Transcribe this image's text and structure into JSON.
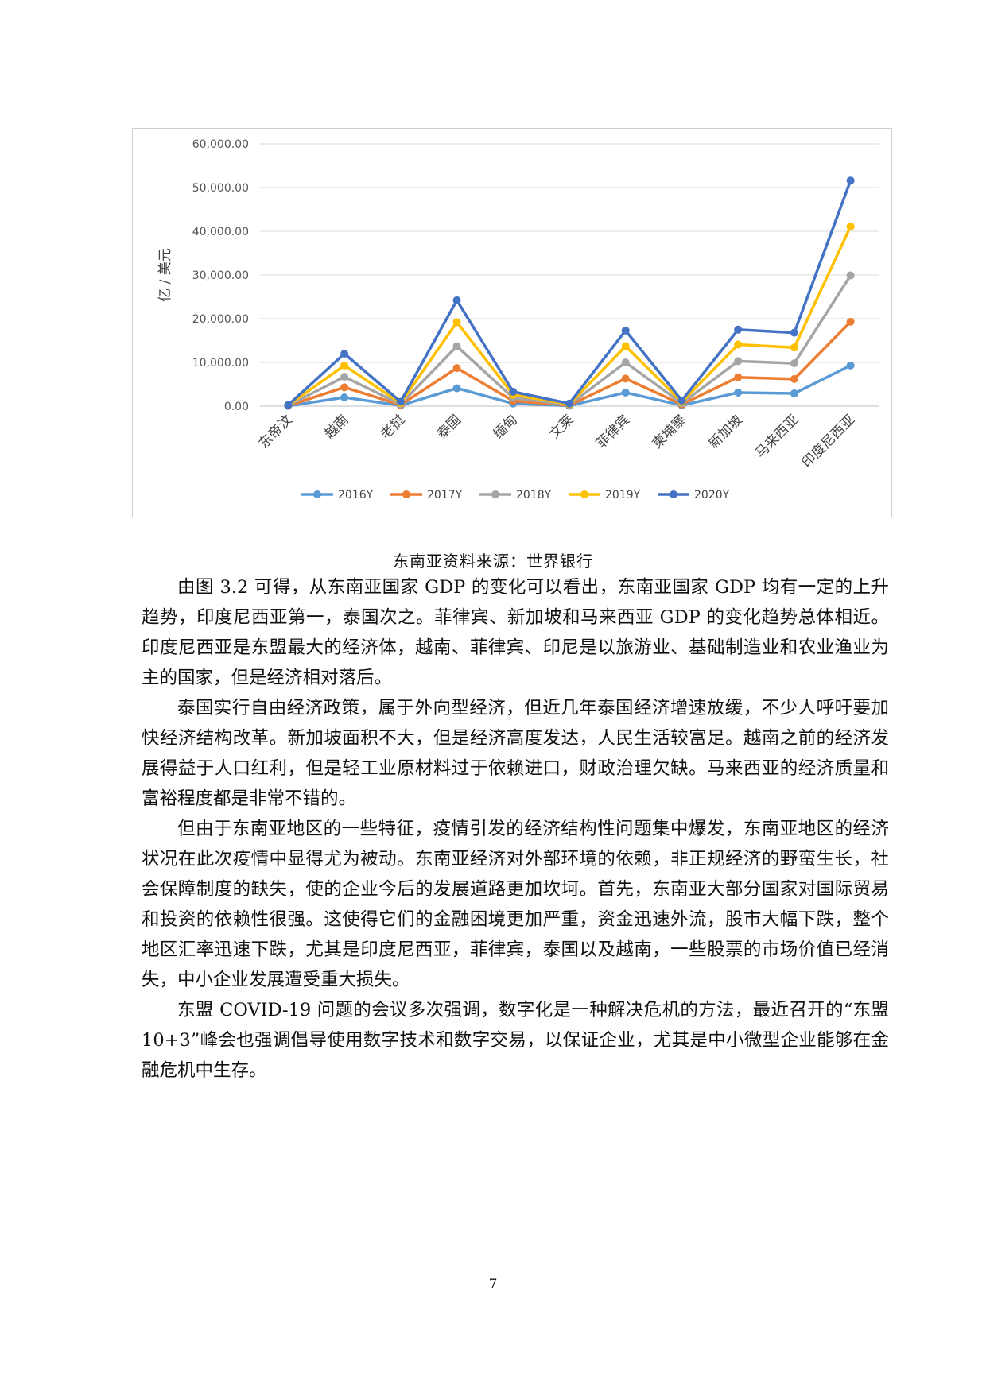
{
  "chart_data": {
    "type": "line",
    "title": "",
    "ylabel": "亿 / 美元",
    "ylim": [
      0,
      60000
    ],
    "yticks": [
      "0.00",
      "10,000.00",
      "20,000.00",
      "30,000.00",
      "40,000.00",
      "50,000.00",
      "60,000.00"
    ],
    "categories": [
      "东帝汶",
      "越南",
      "老挝",
      "泰国",
      "缅甸",
      "文莱",
      "菲律宾",
      "柬埔寨",
      "新加坡",
      "马来西亚",
      "印度尼西亚"
    ],
    "legend": "bottom",
    "grid": true,
    "series": [
      {
        "name": "2016Y",
        "color": "#5b9bd5",
        "values": [
          50,
          2000,
          150,
          4100,
          600,
          100,
          3100,
          200,
          3100,
          2900,
          9300
        ]
      },
      {
        "name": "2017Y",
        "color": "#ed7d31",
        "values": [
          100,
          4300,
          300,
          8700,
          1200,
          200,
          6300,
          400,
          6600,
          6200,
          19300
        ]
      },
      {
        "name": "2018Y",
        "color": "#a5a5a5",
        "values": [
          150,
          6700,
          450,
          13700,
          1900,
          300,
          10000,
          650,
          10300,
          9800,
          29900
        ]
      },
      {
        "name": "2019Y",
        "color": "#ffc000",
        "values": [
          200,
          9300,
          700,
          19200,
          2600,
          450,
          13700,
          950,
          14100,
          13400,
          41100
        ]
      },
      {
        "name": "2020Y",
        "color": "#4472c4",
        "values": [
          250,
          12000,
          1000,
          24200,
          3300,
          600,
          17300,
          1300,
          17500,
          16800,
          51600
        ]
      }
    ]
  },
  "caption": "东南亚资料来源：世界银行",
  "paragraphs": [
    "由图 3.2 可得，从东南亚国家 GDP 的变化可以看出，东南亚国家 GDP 均有一定的上升趋势，印度尼西亚第一，泰国次之。菲律宾、新加坡和马来西亚 GDP 的变化趋势总体相近。印度尼西亚是东盟最大的经济体，越南、菲律宾、印尼是以旅游业、基础制造业和农业渔业为主的国家，但是经济相对落后。",
    "泰国实行自由经济政策，属于外向型经济，但近几年泰国经济增速放缓，不少人呼吁要加快经济结构改革。新加坡面积不大，但是经济高度发达，人民生活较富足。越南之前的经济发展得益于人口红利，但是轻工业原材料过于依赖进口，财政治理欠缺。马来西亚的经济质量和富裕程度都是非常不错的。",
    "但由于东南亚地区的一些特征，疫情引发的经济结构性问题集中爆发，东南亚地区的经济状况在此次疫情中显得尤为被动。东南亚经济对外部环境的依赖，非正规经济的野蛮生长，社会保障制度的缺失，使的企业今后的发展道路更加坎坷。首先，东南亚大部分国家对国际贸易和投资的依赖性很强。这使得它们的金融困境更加严重，资金迅速外流，股市大幅下跌，整个地区汇率迅速下跌，尤其是印度尼西亚，菲律宾，泰国以及越南，一些股票的市场价值已经消失，中小企业发展遭受重大损失。",
    "东盟 COVID-19 问题的会议多次强调，数字化是一种解决危机的方法，最近召开的“东盟 10+3”峰会也强调倡导使用数字技术和数字交易，以保证企业，尤其是中小微型企业能够在金融危机中生存。"
  ],
  "page_number": "7"
}
